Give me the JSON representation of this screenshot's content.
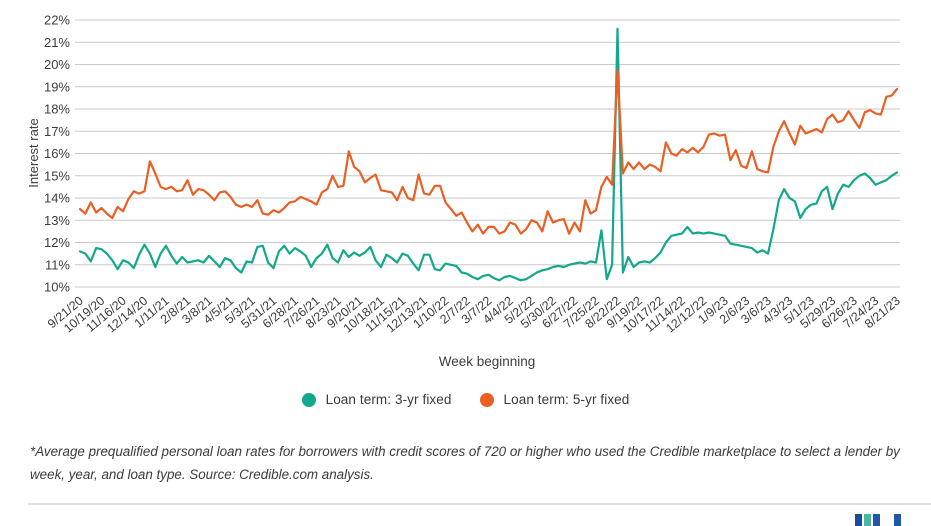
{
  "colors": {
    "teal": "#13a88a",
    "orange": "#e95f24",
    "grid": "#c9c9c9",
    "axis_text": "#3d3d3d",
    "divider": "#e0e0e0",
    "logo_squares": [
      "#1b4b9e",
      "#4db6a0",
      "#2157a8",
      "#2157a8"
    ]
  },
  "legend": {
    "items": [
      {
        "label": "Loan term: 3-yr fixed",
        "color_key": "teal"
      },
      {
        "label": "Loan term: 5-yr fixed",
        "color_key": "orange"
      }
    ]
  },
  "footnote": "*Average prequalified personal loan rates for borrowers with credit scores of 720 or higher who used the Credible marketplace to select a lender by week, year, and loan type. Source: Credible.com analysis.",
  "chart_data": {
    "type": "line",
    "title": "",
    "xlabel": "Week beginning",
    "ylabel": "Interest rate",
    "ylim": [
      10,
      22
    ],
    "grid": "horizontal",
    "legend_position": "bottom",
    "x_unit": "week",
    "tick_every": 4,
    "y_tick_labels": [
      "10%",
      "11%",
      "12%",
      "13%",
      "14%",
      "15%",
      "16%",
      "17%",
      "18%",
      "19%",
      "20%",
      "21%",
      "22%"
    ],
    "x_tick_labels": [
      "9/21/20",
      "10/19/20",
      "11/16/20",
      "12/14/20",
      "1/11/21",
      "2/8/21",
      "3/8/21",
      "4/5/21",
      "5/3/21",
      "5/31/21",
      "6/28/21",
      "7/26/21",
      "8/23/21",
      "9/20/21",
      "10/18/21",
      "11/15/21",
      "12/13/21",
      "1/10/22",
      "2/7/22",
      "3/7/22",
      "4/4/22",
      "5/2/22",
      "5/30/22",
      "6/27/22",
      "7/25/22",
      "8/22/22",
      "9/19/22",
      "10/17/22",
      "11/14/22",
      "12/12/22",
      "1/9/23",
      "2/6/23",
      "3/6/23",
      "4/3/23",
      "5/1/23",
      "5/29/23",
      "6/26/23",
      "7/24/23",
      "8/21/23"
    ],
    "series": [
      {
        "name": "Loan term: 3-yr fixed",
        "color_key": "teal",
        "values": [
          11.6,
          11.5,
          11.15,
          11.75,
          11.7,
          11.5,
          11.2,
          10.8,
          11.2,
          11.1,
          10.85,
          11.45,
          11.9,
          11.5,
          10.9,
          11.5,
          11.85,
          11.4,
          11.05,
          11.35,
          11.1,
          11.15,
          11.2,
          11.1,
          11.4,
          11.15,
          10.9,
          11.3,
          11.2,
          10.85,
          10.65,
          11.15,
          11.1,
          11.8,
          11.85,
          11.1,
          10.85,
          11.6,
          11.85,
          11.5,
          11.75,
          11.6,
          11.4,
          10.9,
          11.3,
          11.5,
          11.9,
          11.3,
          11.1,
          11.65,
          11.35,
          11.55,
          11.4,
          11.55,
          11.8,
          11.2,
          10.9,
          11.45,
          11.3,
          11.1,
          11.5,
          11.4,
          11.05,
          10.75,
          11.45,
          11.45,
          10.8,
          10.75,
          11.05,
          11.0,
          10.95,
          10.65,
          10.6,
          10.45,
          10.35,
          10.5,
          10.55,
          10.4,
          10.3,
          10.45,
          10.5,
          10.4,
          10.3,
          10.35,
          10.5,
          10.65,
          10.75,
          10.8,
          10.9,
          10.95,
          10.9,
          11.0,
          11.05,
          11.1,
          11.05,
          11.15,
          11.1,
          12.55,
          10.35,
          11.0,
          21.6,
          10.65,
          11.35,
          10.9,
          11.1,
          11.15,
          11.1,
          11.3,
          11.55,
          12.0,
          12.3,
          12.35,
          12.4,
          12.7,
          12.4,
          12.45,
          12.4,
          12.45,
          12.4,
          12.35,
          12.3,
          11.95,
          11.9,
          11.85,
          11.8,
          11.75,
          11.55,
          11.65,
          11.5,
          12.6,
          13.9,
          14.4,
          14.0,
          13.85,
          13.1,
          13.5,
          13.7,
          13.75,
          14.3,
          14.5,
          13.5,
          14.2,
          14.6,
          14.5,
          14.8,
          15.0,
          15.1,
          14.9,
          14.6,
          14.7,
          14.8,
          15.0,
          15.15
        ]
      },
      {
        "name": "Loan term: 5-yr fixed",
        "color_key": "orange",
        "values": [
          13.5,
          13.3,
          13.8,
          13.35,
          13.55,
          13.3,
          13.1,
          13.6,
          13.4,
          13.95,
          14.3,
          14.2,
          14.3,
          15.65,
          15.1,
          14.5,
          14.4,
          14.5,
          14.3,
          14.35,
          14.8,
          14.15,
          14.4,
          14.35,
          14.15,
          13.9,
          14.25,
          14.3,
          14.05,
          13.7,
          13.6,
          13.7,
          13.6,
          13.9,
          13.3,
          13.25,
          13.45,
          13.35,
          13.55,
          13.8,
          13.85,
          14.05,
          13.95,
          13.85,
          13.7,
          14.25,
          14.4,
          15.0,
          14.5,
          14.55,
          16.1,
          15.4,
          15.2,
          14.7,
          14.9,
          15.05,
          14.35,
          14.3,
          14.25,
          13.9,
          14.5,
          14.0,
          13.9,
          15.05,
          14.2,
          14.15,
          14.55,
          14.55,
          13.8,
          13.5,
          13.2,
          13.35,
          12.9,
          12.5,
          12.8,
          12.4,
          12.7,
          12.7,
          12.4,
          12.5,
          12.9,
          12.8,
          12.4,
          12.6,
          13.0,
          12.9,
          12.5,
          13.4,
          12.9,
          13.0,
          13.05,
          12.4,
          12.9,
          12.5,
          13.9,
          13.3,
          13.45,
          14.5,
          14.95,
          14.6,
          19.75,
          15.1,
          15.6,
          15.3,
          15.6,
          15.3,
          15.5,
          15.4,
          15.2,
          16.5,
          16.0,
          15.9,
          16.2,
          16.05,
          16.25,
          16.05,
          16.3,
          16.85,
          16.9,
          16.8,
          16.85,
          15.7,
          16.15,
          15.45,
          15.35,
          16.1,
          15.3,
          15.2,
          15.15,
          16.3,
          17.0,
          17.45,
          16.9,
          16.4,
          17.25,
          16.9,
          17.0,
          17.1,
          16.95,
          17.55,
          17.75,
          17.4,
          17.5,
          17.9,
          17.5,
          17.15,
          17.85,
          17.95,
          17.8,
          17.75,
          18.55,
          18.6,
          18.9
        ]
      }
    ]
  }
}
